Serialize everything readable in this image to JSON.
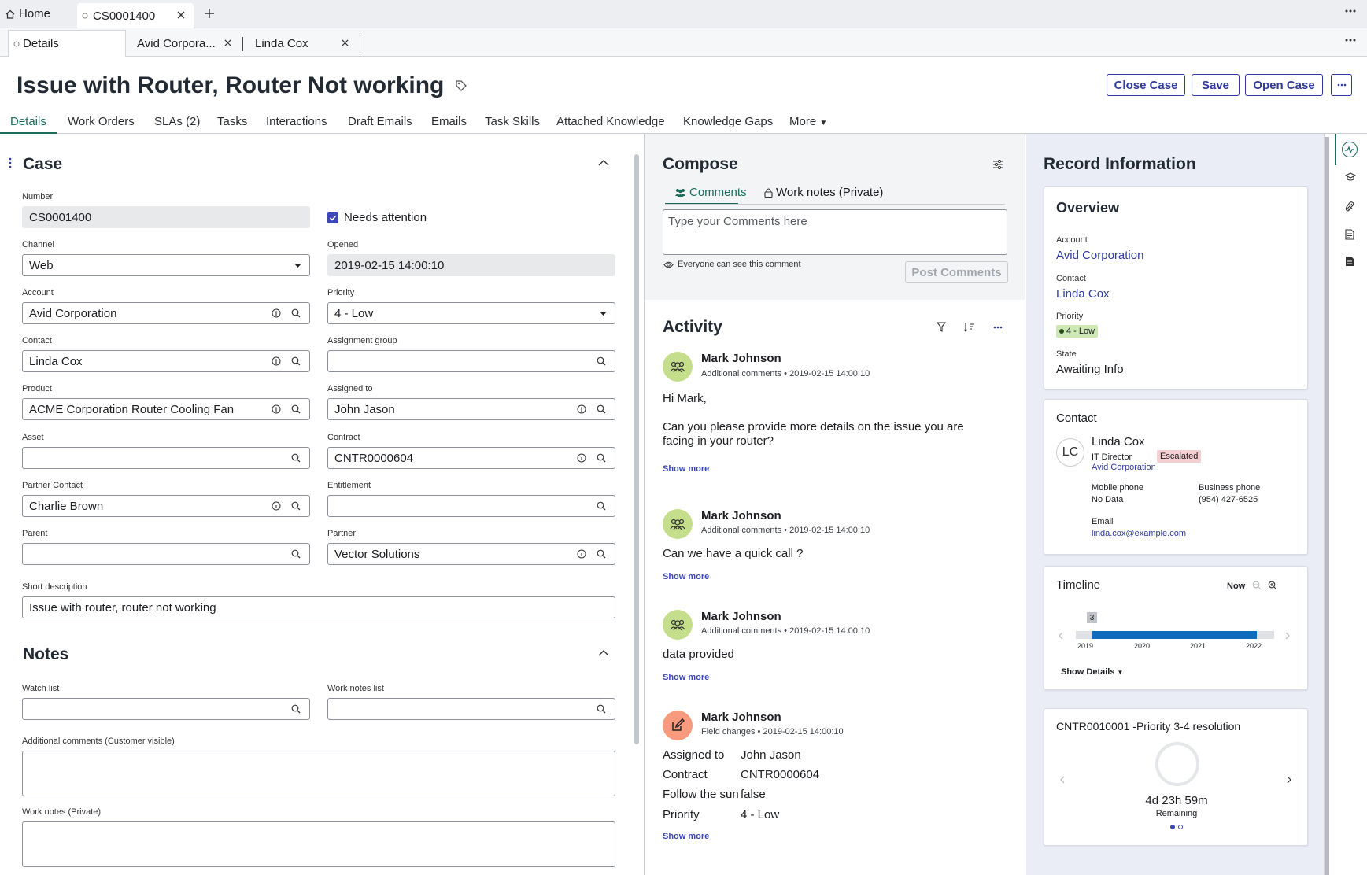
{
  "top_tabs": {
    "home": "Home",
    "active_tab": "CS0001400"
  },
  "sub_tabs": [
    "Details",
    "Avid Corpora...",
    "Linda Cox"
  ],
  "header": {
    "title": "Issue with Router, Router Not working",
    "buttons": [
      "Close Case",
      "Save",
      "Open Case"
    ]
  },
  "record_tabs": [
    "Details",
    "Work Orders",
    "SLAs (2)",
    "Tasks",
    "Interactions",
    "Draft Emails",
    "Emails",
    "Task Skills",
    "Attached Knowledge",
    "Knowledge Gaps",
    "More"
  ],
  "case": {
    "title": "Case",
    "number_label": "Number",
    "number": "CS0001400",
    "needs_attention": "Needs attention",
    "channel_label": "Channel",
    "channel": "Web",
    "opened_label": "Opened",
    "opened": "2019-02-15 14:00:10",
    "account_label": "Account",
    "account": "Avid Corporation",
    "priority_label": "Priority",
    "priority": "4 - Low",
    "contact_label": "Contact",
    "contact": "Linda Cox",
    "assignment_group_label": "Assignment group",
    "assignment_group": "",
    "product_label": "Product",
    "product": "ACME Corporation Router Cooling Fan",
    "assigned_to_label": "Assigned to",
    "assigned_to": "John Jason",
    "asset_label": "Asset",
    "asset": "",
    "contract_label": "Contract",
    "contract": "CNTR0000604",
    "partner_contact_label": "Partner Contact",
    "partner_contact": "Charlie Brown",
    "entitlement_label": "Entitlement",
    "entitlement": "",
    "parent_label": "Parent",
    "parent": "",
    "partner_label": "Partner",
    "partner": "Vector Solutions",
    "short_description_label": "Short description",
    "short_description": "Issue with router, router not working"
  },
  "notes": {
    "title": "Notes",
    "watch_list_label": "Watch list",
    "work_notes_list_label": "Work notes list",
    "additional_comments_label": "Additional comments (Customer visible)",
    "work_notes_label": "Work notes (Private)"
  },
  "compose": {
    "title": "Compose",
    "tab_comments": "Comments",
    "tab_work_notes": "Work notes (Private)",
    "placeholder": "Type your Comments here",
    "visibility": "Everyone can see this comment",
    "post_button": "Post Comments"
  },
  "activity": {
    "title": "Activity",
    "entries": [
      {
        "name": "Mark Johnson",
        "type": "Additional comments",
        "time": "2019-02-15 14:00:10",
        "line1": "Hi Mark,",
        "line2": "Can you please provide more details on the issue you are facing in your router?",
        "show_more": "Show more"
      },
      {
        "name": "Mark Johnson",
        "type": "Additional comments",
        "time": "2019-02-15 14:00:10",
        "line1": "Can we have a quick call ?",
        "show_more": "Show more"
      },
      {
        "name": "Mark Johnson",
        "type": "Additional comments",
        "time": "2019-02-15 14:00:10",
        "line1": "data provided",
        "show_more": "Show more"
      },
      {
        "name": "Mark Johnson",
        "type": "Field changes",
        "time": "2019-02-15 14:00:10",
        "changes": [
          {
            "field": "Assigned to",
            "value": "John Jason"
          },
          {
            "field": "Contract",
            "value": "CNTR0000604"
          },
          {
            "field": "Follow the sun",
            "value": "false"
          },
          {
            "field": "Priority",
            "value": "4 - Low"
          }
        ],
        "show_more": "Show more"
      }
    ]
  },
  "record_info": {
    "title": "Record Information",
    "overview": {
      "title": "Overview",
      "account_label": "Account",
      "account": "Avid Corporation",
      "contact_label": "Contact",
      "contact": "Linda Cox",
      "priority_label": "Priority",
      "priority": "4 - Low",
      "state_label": "State",
      "state": "Awaiting Info"
    },
    "contact_card": {
      "title": "Contact",
      "initials": "LC",
      "name": "Linda Cox",
      "role": "IT Director",
      "badge": "Escalated",
      "company": "Avid Corporation",
      "mobile_label": "Mobile phone",
      "mobile": "No Data",
      "business_label": "Business phone",
      "business": "(954) 427-6525",
      "email_label": "Email",
      "email": "linda.cox@example.com"
    },
    "timeline": {
      "title": "Timeline",
      "now": "Now",
      "count": "3",
      "years": [
        "2019",
        "2020",
        "2021",
        "2022"
      ],
      "show_details": "Show Details"
    },
    "sla": {
      "title": "CNTR0010001 -Priority 3-4 resolution",
      "remaining_time": "4d 23h 59m",
      "remaining_label": "Remaining"
    }
  },
  "colors": {
    "accent": "#2f3a9e",
    "active_tab": "#1b6b5b",
    "priority_badge": "#cde8b5",
    "escalated_badge": "#f6cfd2",
    "avatar_green": "#c5de8c",
    "avatar_orange": "#f79a7d"
  }
}
